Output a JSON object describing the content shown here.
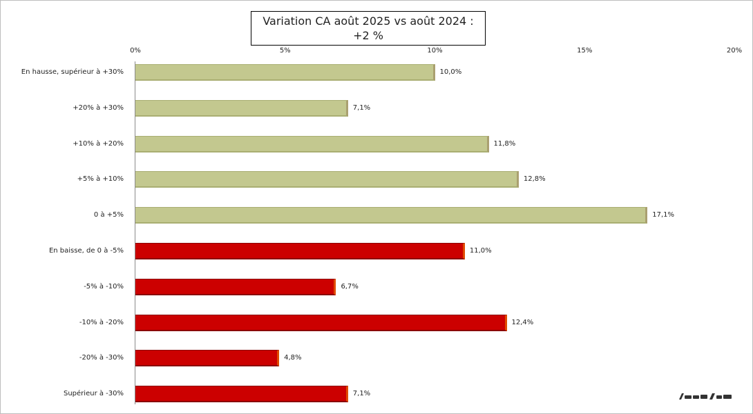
{
  "chart_data": {
    "type": "bar",
    "orientation": "horizontal",
    "title": "Variation CA août 2025 vs août 2024 :",
    "subtitle": "+2 %",
    "xlim": [
      0,
      20
    ],
    "x_ticks": [
      "0%",
      "5%",
      "10%",
      "15%",
      "20%"
    ],
    "categories": [
      "En hausse, supérieur à +30%",
      "+20% à +30%",
      "+10% à +20%",
      "+5% à +10%",
      "0 à +5%",
      "En baisse, de 0 à -5%",
      "-5% à -10%",
      "-10% à -20%",
      "-20% à -30%",
      "Supérieur à -30%"
    ],
    "values": [
      10.0,
      7.1,
      11.8,
      12.8,
      17.1,
      11.0,
      6.7,
      12.4,
      4.8,
      7.1
    ],
    "value_labels": [
      "10,0%",
      "7,1%",
      "11,8%",
      "12,8%",
      "17,1%",
      "11,0%",
      "6,7%",
      "12,4%",
      "4,8%",
      "7,1%"
    ],
    "bar_colors": [
      "#c3c88f",
      "#c3c88f",
      "#c3c88f",
      "#c3c88f",
      "#c3c88f",
      "#cc0000",
      "#cc0000",
      "#cc0000",
      "#cc0000",
      "#cc0000"
    ],
    "grid": false,
    "legend": "none"
  }
}
